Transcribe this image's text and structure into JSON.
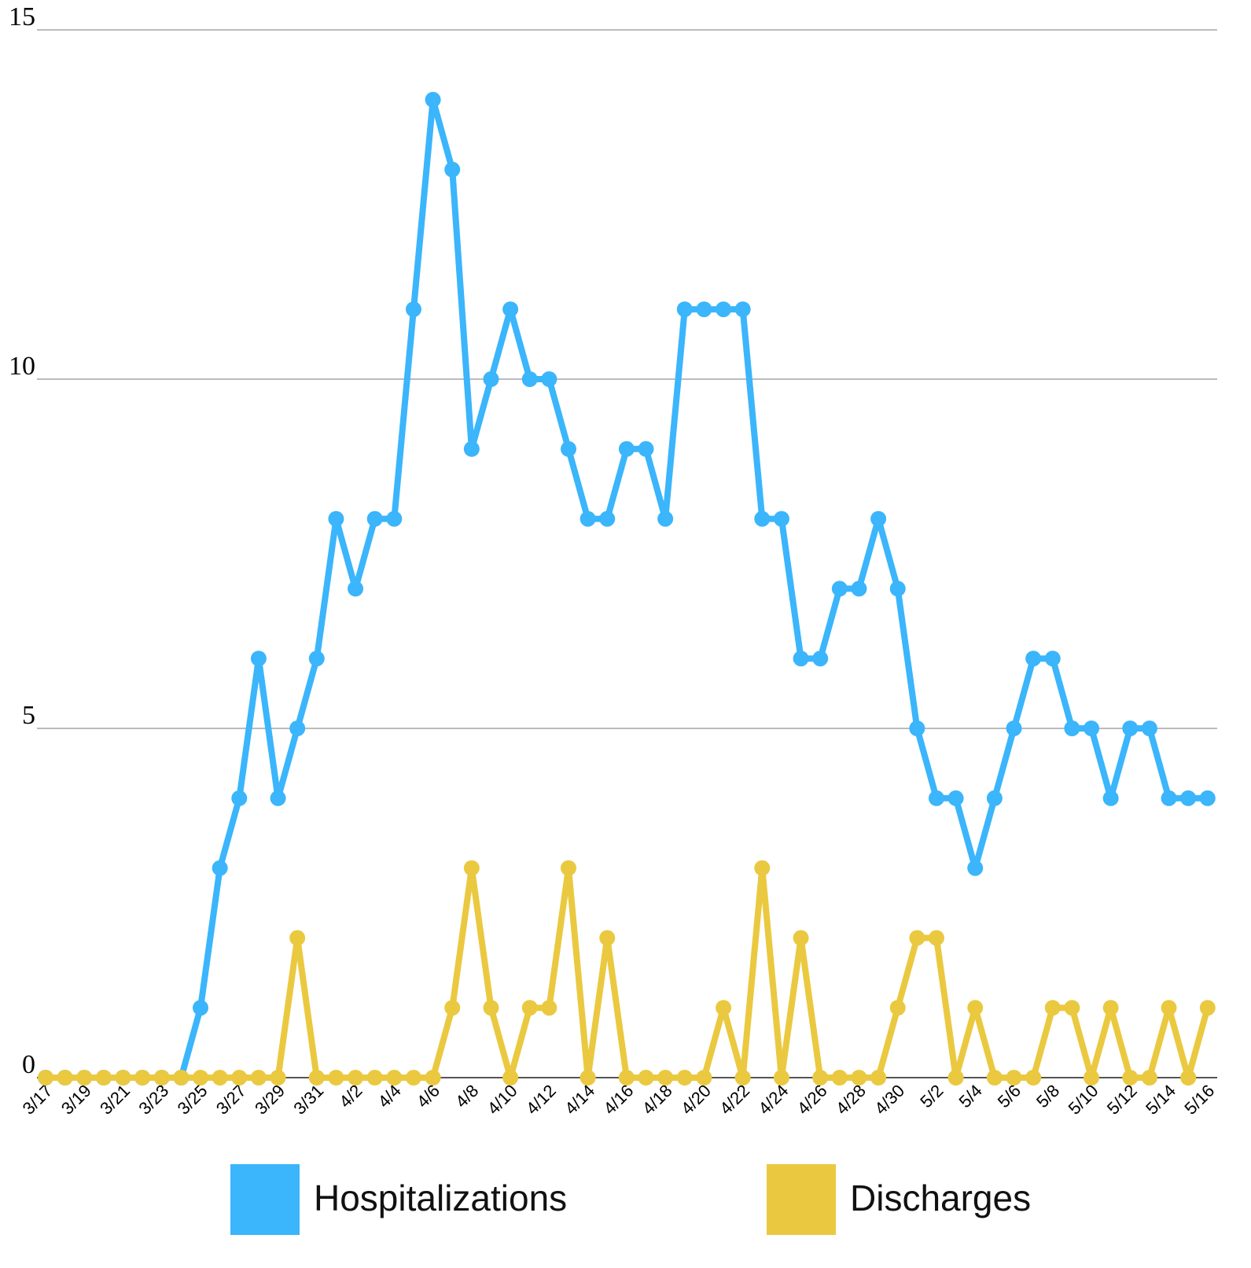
{
  "chart_data": {
    "type": "line",
    "categories": [
      "3/17",
      null,
      "3/19",
      null,
      "3/21",
      null,
      "3/23",
      null,
      "3/25",
      null,
      "3/27",
      null,
      "3/29",
      null,
      "3/31",
      null,
      "4/2",
      null,
      "4/4",
      null,
      "4/6",
      null,
      "4/8",
      null,
      "4/10",
      null,
      "4/12",
      null,
      "4/14",
      null,
      "4/16",
      null,
      "4/18",
      null,
      "4/20",
      null,
      "4/22",
      null,
      "4/24",
      null,
      "4/26",
      null,
      "4/28",
      null,
      "4/30",
      null,
      "5/2",
      null,
      "5/4",
      null,
      "5/6",
      null,
      "5/8",
      null,
      "5/10",
      null,
      "5/12",
      null,
      "5/14",
      null,
      "5/16"
    ],
    "series": [
      {
        "name": "Hospitalizations",
        "color": "#3bb5fb",
        "values": [
          0,
          0,
          0,
          0,
          0,
          0,
          0,
          0,
          1,
          3,
          4,
          6,
          4,
          5,
          6,
          8,
          7,
          8,
          8,
          11,
          14,
          13,
          9,
          10,
          11,
          10,
          10,
          9,
          8,
          8,
          9,
          9,
          8,
          11,
          11,
          11,
          11,
          8,
          8,
          6,
          6,
          7,
          7,
          8,
          7,
          5,
          4,
          4,
          3,
          4,
          5,
          6,
          6,
          5,
          5,
          4,
          5,
          5,
          4,
          4,
          4
        ]
      },
      {
        "name": "Discharges",
        "color": "#eac940",
        "values": [
          0,
          0,
          0,
          0,
          0,
          0,
          0,
          0,
          0,
          0,
          0,
          0,
          0,
          2,
          0,
          0,
          0,
          0,
          0,
          0,
          0,
          1,
          3,
          1,
          0,
          1,
          1,
          3,
          0,
          2,
          0,
          0,
          0,
          0,
          0,
          1,
          0,
          3,
          0,
          2,
          0,
          0,
          0,
          0,
          1,
          2,
          2,
          0,
          1,
          0,
          0,
          0,
          1,
          1,
          0,
          1,
          0,
          0,
          1,
          0,
          1
        ]
      }
    ],
    "ylim": [
      0,
      15
    ],
    "yticks": [
      0,
      5,
      10,
      15
    ],
    "grid": true
  }
}
